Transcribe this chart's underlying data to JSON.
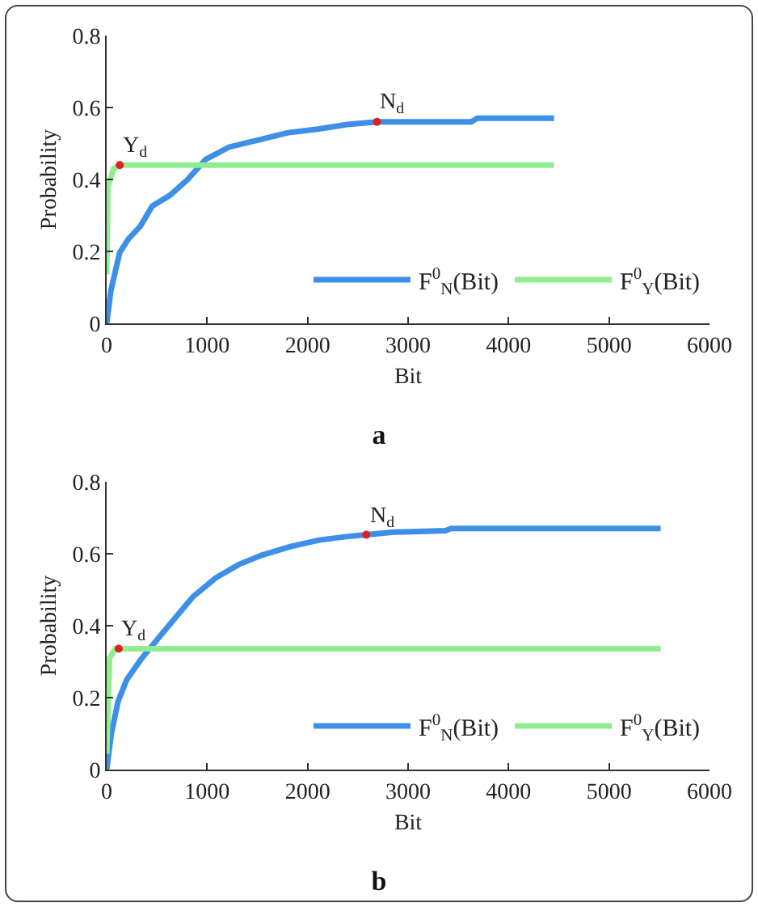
{
  "chart_data": [
    {
      "type": "line",
      "title": "a",
      "xlabel": "Bit",
      "ylabel": "Probability",
      "xlim": [
        0,
        6000
      ],
      "xticks": [
        0,
        1000,
        2000,
        3000,
        4000,
        5000,
        6000
      ],
      "ylim": [
        0,
        0.8
      ],
      "yticks": [
        0,
        0.2,
        0.4,
        0.6,
        0.8
      ],
      "legend": "bottom right",
      "line_style": "solid",
      "annotations": [
        {
          "text": "Y$_{d}$",
          "x": 130,
          "y": 0.44
        },
        {
          "text": "N$_{d}$",
          "x": 2690,
          "y": 0.56
        }
      ],
      "series": [
        {
          "name": "F$^{0}$$_{N}$(Bit)",
          "color": "#3d8fe8",
          "x": [
            0,
            41,
            130,
            218,
            335,
            453,
            630,
            806,
            982,
            1218,
            1512,
            1806,
            2100,
            2394,
            2690,
            3041,
            3629,
            3688,
            4453
          ],
          "values": [
            0,
            0.09,
            0.197,
            0.235,
            0.27,
            0.326,
            0.356,
            0.4,
            0.455,
            0.49,
            0.51,
            0.53,
            0.54,
            0.553,
            0.56,
            0.56,
            0.56,
            0.57,
            0.57
          ]
        },
        {
          "name": "F$^{0}$$_{Y}$(Bit)",
          "color": "#90ee90",
          "x": [
            0,
            12,
            70,
            130,
            4453
          ],
          "values": [
            0.136,
            0.38,
            0.43,
            0.44,
            0.44
          ]
        },
        {
          "type": "scatter",
          "color": "#e02020",
          "marker": "circle",
          "x": [
            130,
            2690
          ],
          "values": [
            0.44,
            0.56
          ]
        }
      ]
    },
    {
      "type": "line",
      "title": "b",
      "xlabel": "Bit",
      "ylabel": "Probability",
      "xlim": [
        0,
        6000
      ],
      "xticks": [
        0,
        1000,
        2000,
        3000,
        4000,
        5000,
        6000
      ],
      "ylim": [
        0,
        0.8
      ],
      "yticks": [
        0,
        0.2,
        0.4,
        0.6,
        0.8
      ],
      "legend": "bottom right",
      "line_style": "solid",
      "annotations": [
        {
          "text": "Y$_{d}$",
          "x": 120,
          "y": 0.336
        },
        {
          "text": "N$_{d}$",
          "x": 2583,
          "y": 0.653
        }
      ],
      "series": [
        {
          "name": "F$^{0}$$_{N}$(Bit)",
          "color": "#3d8fe8",
          "x": [
            0,
            46,
            114,
            200,
            343,
            514,
            686,
            857,
            1086,
            1314,
            1543,
            1829,
            2114,
            2400,
            2583,
            2857,
            3371,
            3429,
            5514
          ],
          "values": [
            0,
            0.1,
            0.19,
            0.25,
            0.307,
            0.365,
            0.423,
            0.48,
            0.533,
            0.57,
            0.596,
            0.62,
            0.638,
            0.648,
            0.653,
            0.66,
            0.664,
            0.67,
            0.67
          ]
        },
        {
          "name": "F$^{0}$$_{Y}$(Bit)",
          "color": "#90ee90",
          "x": [
            0,
            29,
            86,
            5514
          ],
          "values": [
            0.044,
            0.31,
            0.336,
            0.336
          ]
        },
        {
          "type": "scatter",
          "color": "#e02020",
          "marker": "circle",
          "x": [
            120,
            2583
          ],
          "values": [
            0.336,
            0.653
          ]
        }
      ]
    }
  ]
}
